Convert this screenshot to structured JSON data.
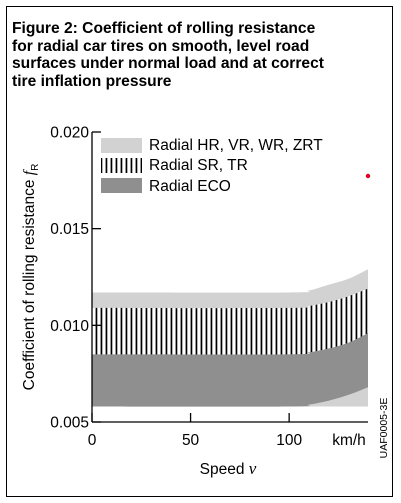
{
  "title_lines": [
    "Figure 2: Coefficient of rolling resistance",
    "for radial car tires on smooth, level road",
    "surfaces under normal load and at correct",
    "tire inflation pressure"
  ],
  "figure_code": "UAF0005-3E",
  "colors": {
    "band_hr": "#d2d2d2",
    "band_eco": "#8f8f8f",
    "hatch": "#000000",
    "marker": "#e0001a"
  },
  "chart_data": {
    "type": "area",
    "ylabel_main": "Coefficient of rolling resistance ",
    "ylabel_symbol": "f",
    "ylabel_sub": "R",
    "xlabel_main": "Speed ",
    "xlabel_symbol": "v",
    "x_unit": "km/h",
    "xlim": [
      0,
      140
    ],
    "ylim": [
      0.005,
      0.02
    ],
    "x_ticks": [
      0,
      50,
      100
    ],
    "x_tick_labels": [
      "0",
      "50",
      "100"
    ],
    "y_ticks": [
      0.005,
      0.01,
      0.015,
      0.02
    ],
    "y_tick_labels": [
      "0.005",
      "0.010",
      "0.015",
      "0.020"
    ],
    "grid": false,
    "legend_position": "top-left",
    "series": [
      {
        "name": "Radial HR, VR, WR, ZRT",
        "style": "light",
        "x": [
          0,
          100,
          110,
          120,
          130,
          140
        ],
        "lower": [
          0.0058,
          0.0058,
          0.0058,
          0.0058,
          0.0058,
          0.0058
        ],
        "upper": [
          0.0117,
          0.0117,
          0.0118,
          0.0121,
          0.0124,
          0.0129
        ]
      },
      {
        "name": "Radial SR, TR",
        "style": "hatched",
        "x": [
          0,
          100,
          110,
          120,
          130,
          140
        ],
        "lower": [
          0.0072,
          0.0072,
          0.0073,
          0.0075,
          0.0079,
          0.0083
        ],
        "upper": [
          0.0109,
          0.0109,
          0.011,
          0.0112,
          0.0115,
          0.0119
        ]
      },
      {
        "name": "Radial ECO",
        "style": "dark",
        "x": [
          0,
          100,
          110,
          120,
          130,
          140
        ],
        "lower": [
          0.0058,
          0.0058,
          0.0059,
          0.0061,
          0.0064,
          0.0068
        ],
        "upper": [
          0.0085,
          0.0085,
          0.0086,
          0.0088,
          0.0091,
          0.0096
        ]
      }
    ]
  }
}
